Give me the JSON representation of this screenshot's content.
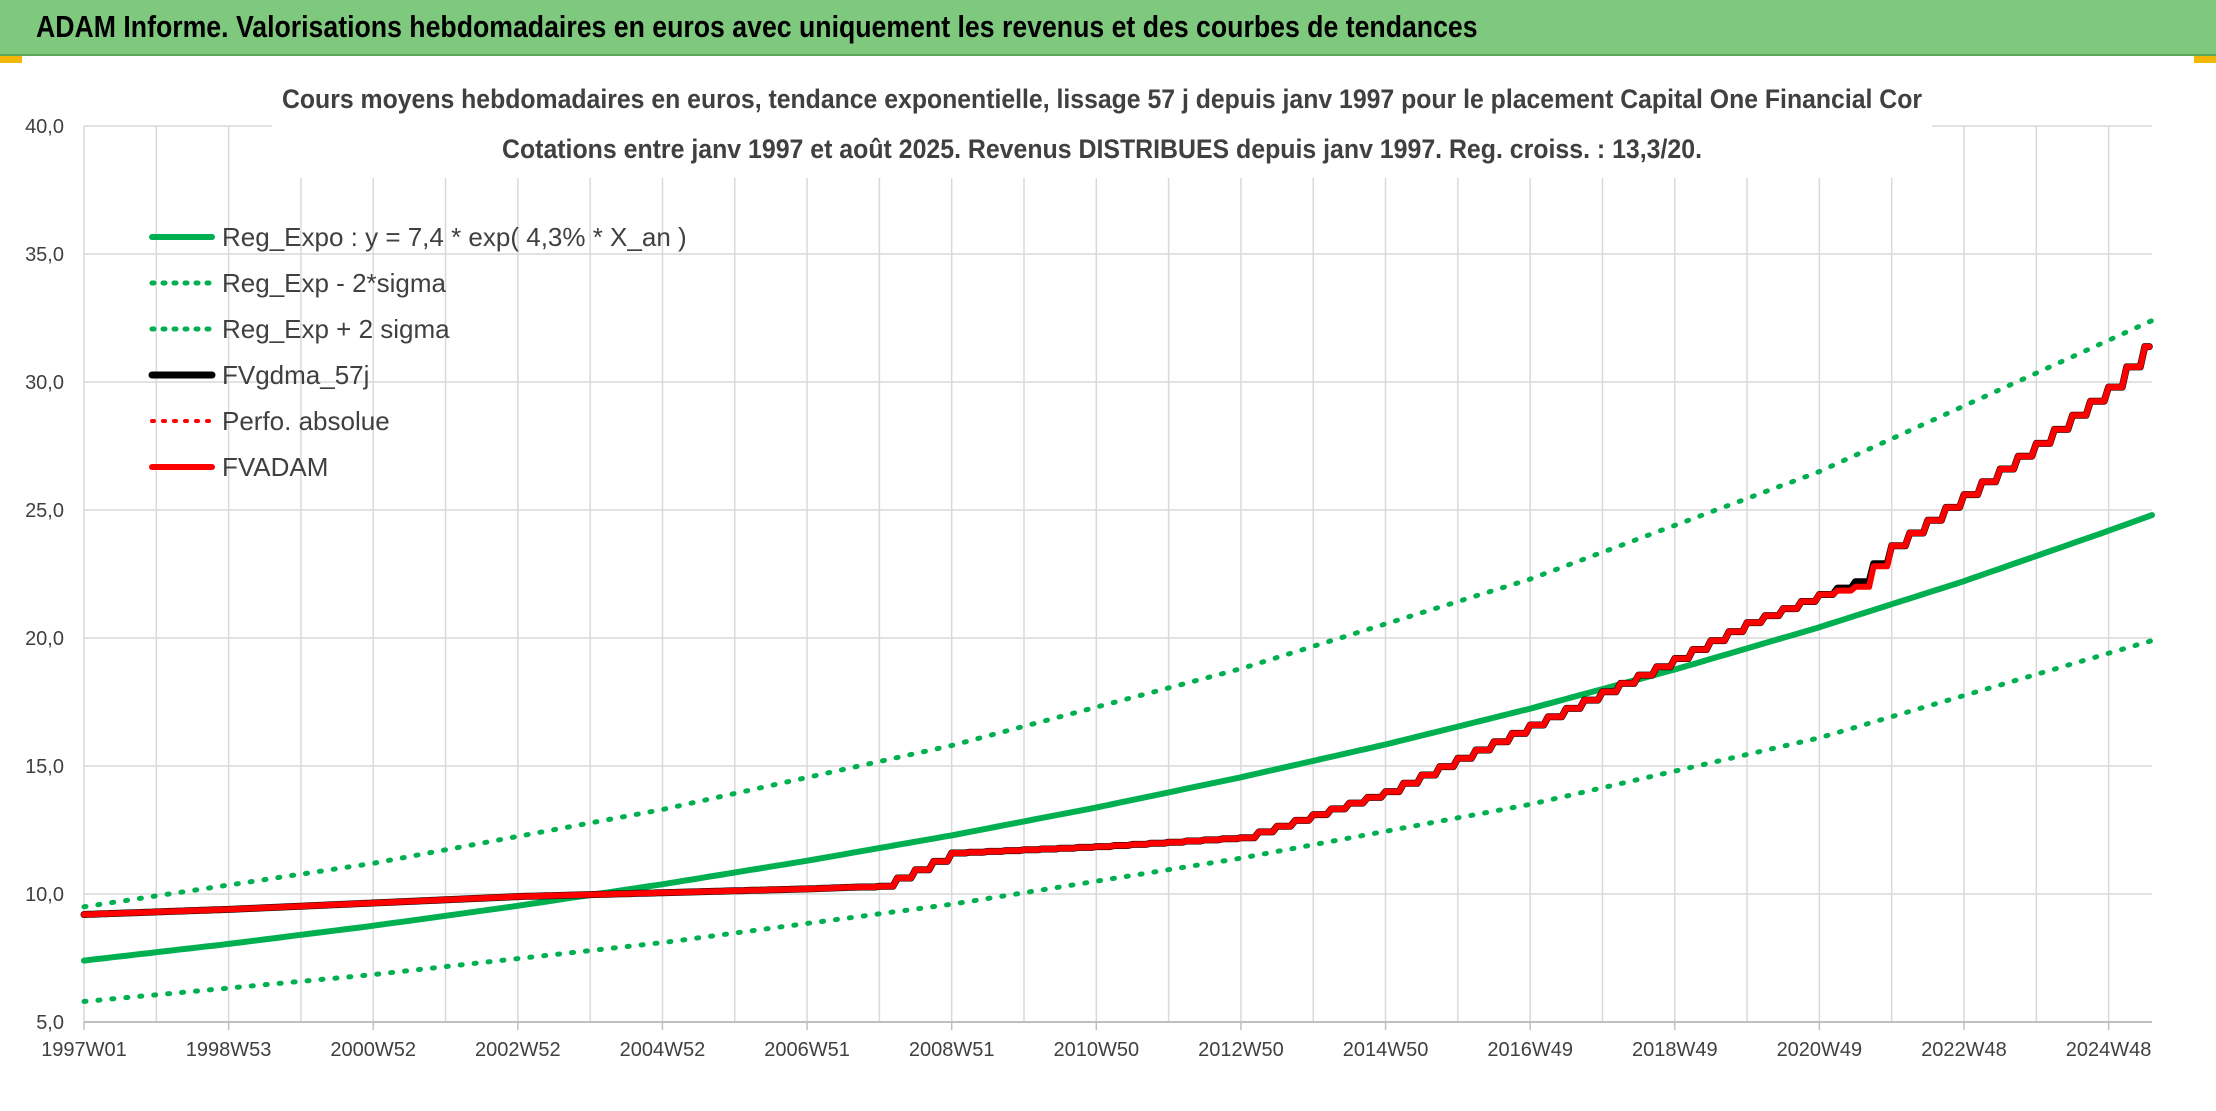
{
  "banner": {
    "title": "ADAM Informe. Valorisations hebdomadaires en euros avec uniquement les revenus et des courbes de tendances"
  },
  "colors": {
    "banner_bg": "#7fc97f",
    "green": "#00b050",
    "red": "#ff0000",
    "black": "#000000",
    "grid": "#d9d9d9"
  },
  "chart_data": {
    "type": "line",
    "title": "Cours moyens hebdomadaires en euros, tendance exponentielle, lissage 57 j depuis janv 1997 pour le placement Capital One Financial Cor",
    "subtitle": "Cotations entre janv 1997 et août 2025. Revenus DISTRIBUES depuis janv 1997. Reg. croiss. : 13,3/20.",
    "xlabel": "",
    "ylabel": "",
    "x_range": [
      1997.0,
      2025.6
    ],
    "ylim": [
      5.0,
      40.0
    ],
    "y_ticks": [
      "5,0",
      "10,0",
      "15,0",
      "20,0",
      "25,0",
      "30,0",
      "35,0",
      "40,0"
    ],
    "x_ticks": [
      {
        "label": "1997W01",
        "x": 1997.0
      },
      {
        "label": "1998W53",
        "x": 1999.0
      },
      {
        "label": "2000W52",
        "x": 2001.0
      },
      {
        "label": "2002W52",
        "x": 2003.0
      },
      {
        "label": "2004W52",
        "x": 2005.0
      },
      {
        "label": "2006W51",
        "x": 2007.0
      },
      {
        "label": "2008W51",
        "x": 2009.0
      },
      {
        "label": "2010W50",
        "x": 2011.0
      },
      {
        "label": "2012W50",
        "x": 2013.0
      },
      {
        "label": "2014W50",
        "x": 2015.0
      },
      {
        "label": "2016W49",
        "x": 2017.0
      },
      {
        "label": "2018W49",
        "x": 2019.0
      },
      {
        "label": "2020W49",
        "x": 2021.0
      },
      {
        "label": "2022W48",
        "x": 2023.0
      },
      {
        "label": "2024W48",
        "x": 2025.0
      }
    ],
    "grid": true,
    "legend_position": "top-left",
    "series": [
      {
        "name": "Reg_Expo : y = 7,4 * exp( 4,3% *  X_an )",
        "color": "#00b050",
        "style": "solid",
        "width": 6,
        "x": [
          1997,
          1999,
          2001,
          2003,
          2005,
          2007,
          2009,
          2011,
          2013,
          2015,
          2017,
          2019,
          2021,
          2023,
          2025,
          2025.6
        ],
        "y": [
          7.4,
          8.05,
          8.76,
          9.54,
          10.38,
          11.3,
          12.29,
          13.38,
          14.56,
          15.84,
          17.24,
          18.77,
          20.42,
          22.22,
          24.19,
          24.8
        ]
      },
      {
        "name": "Reg_Exp - 2*sigma",
        "color": "#00b050",
        "style": "dotted",
        "width": 5,
        "x": [
          1997,
          2001,
          2005,
          2009,
          2013,
          2017,
          2021,
          2025.6
        ],
        "y": [
          5.8,
          6.85,
          8.1,
          9.6,
          11.4,
          13.5,
          16.1,
          19.9
        ]
      },
      {
        "name": "Reg_Exp + 2 sigma",
        "color": "#00b050",
        "style": "dotted",
        "width": 5,
        "x": [
          1997,
          2001,
          2005,
          2009,
          2013,
          2017,
          2021,
          2025.6
        ],
        "y": [
          9.5,
          11.2,
          13.3,
          15.8,
          18.8,
          22.3,
          26.5,
          32.4
        ]
      },
      {
        "name": "FVgdma_57j",
        "color": "#000000",
        "style": "solid",
        "width": 7,
        "x": [
          1997.0,
          1999.0,
          2001.0,
          2003.0,
          2005.0,
          2007.0,
          2008.0,
          2009.0,
          2011.0,
          2013.0,
          2014.0,
          2015.0,
          2016.0,
          2017.0,
          2018.0,
          2019.0,
          2020.0,
          2021.0,
          2021.5,
          2022.0,
          2023.0,
          2024.0,
          2025.0,
          2025.6
        ],
        "y": [
          9.2,
          9.4,
          9.65,
          9.9,
          10.05,
          10.2,
          10.3,
          11.6,
          11.85,
          12.2,
          13.1,
          14.0,
          15.3,
          16.6,
          17.9,
          19.2,
          20.6,
          21.7,
          22.2,
          23.6,
          25.6,
          27.6,
          29.8,
          31.7
        ]
      },
      {
        "name": "Perfo. absolue",
        "color": "#ff0000",
        "style": "dotted",
        "width": 4,
        "x": [],
        "y": []
      },
      {
        "name": "FVADAM",
        "color": "#ff0000",
        "style": "solid",
        "width": 6,
        "x": [
          1997.0,
          1999.0,
          2001.0,
          2003.0,
          2005.0,
          2007.0,
          2008.0,
          2009.0,
          2011.0,
          2013.0,
          2014.0,
          2015.0,
          2016.0,
          2017.0,
          2018.0,
          2019.0,
          2020.0,
          2021.0,
          2021.5,
          2022.0,
          2023.0,
          2024.0,
          2025.0,
          2025.6
        ],
        "y": [
          9.2,
          9.4,
          9.65,
          9.9,
          10.05,
          10.2,
          10.3,
          11.6,
          11.85,
          12.2,
          13.1,
          14.0,
          15.3,
          16.6,
          17.9,
          19.2,
          20.6,
          21.7,
          22.0,
          23.6,
          25.6,
          27.6,
          29.8,
          31.7
        ]
      }
    ]
  }
}
